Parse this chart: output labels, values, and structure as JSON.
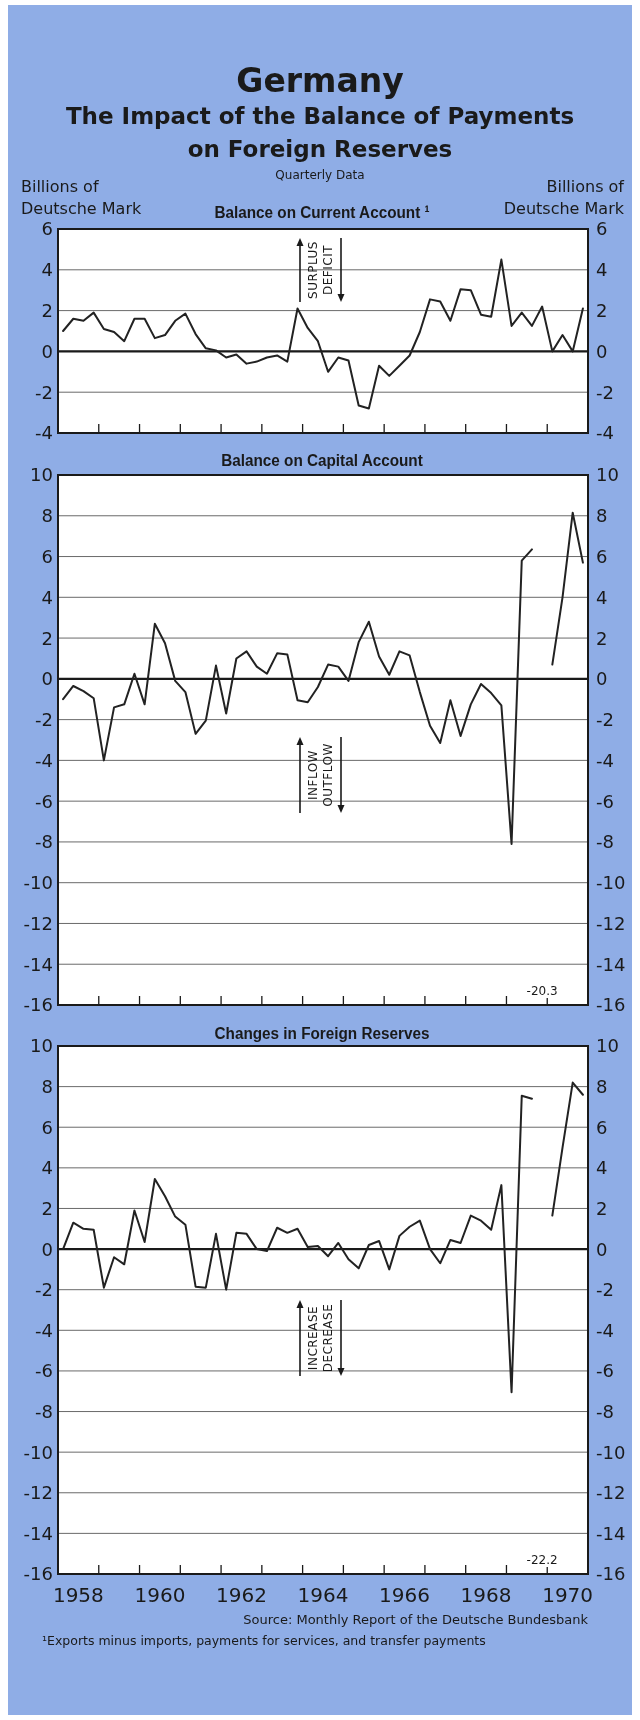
{
  "chart_data": [
    {
      "type": "other",
      "title": "Germany",
      "subtitle": "The Impact of the Balance of Payments on Foreign Reserves",
      "annotations": [
        "Quarterly Data"
      ]
    },
    {
      "type": "line",
      "title": "Balance on Current Account ¹",
      "ylabel": "Billions of Deutsche Mark",
      "y2label": "Billions of Deutsche Mark",
      "x": [
        1958.125,
        1958.375,
        1958.625,
        1958.875,
        1959.125,
        1959.375,
        1959.625,
        1959.875,
        1960.125,
        1960.375,
        1960.625,
        1960.875,
        1961.125,
        1961.375,
        1961.625,
        1961.875,
        1962.125,
        1962.375,
        1962.625,
        1962.875,
        1963.125,
        1963.375,
        1963.625,
        1963.875,
        1964.125,
        1964.375,
        1964.625,
        1964.875,
        1965.125,
        1965.375,
        1965.625,
        1965.875,
        1966.125,
        1966.375,
        1966.625,
        1966.875,
        1967.125,
        1967.375,
        1967.625,
        1967.875,
        1968.125,
        1968.375,
        1968.625,
        1968.875,
        1969.125,
        1969.375,
        1969.625,
        1969.875,
        1970.125,
        1970.375,
        1970.625,
        1970.875
      ],
      "xlim": [
        1958,
        1971
      ],
      "xticks": [
        {
          "value": 1959,
          "label": null
        },
        {
          "value": 1960,
          "label": null
        },
        {
          "value": 1961,
          "label": null
        },
        {
          "value": 1962,
          "label": null
        },
        {
          "value": 1963,
          "label": null
        },
        {
          "value": 1964,
          "label": null
        },
        {
          "value": 1965,
          "label": null
        },
        {
          "value": 1966,
          "label": null
        },
        {
          "value": 1967,
          "label": null
        },
        {
          "value": 1968,
          "label": null
        },
        {
          "value": 1969,
          "label": null
        },
        {
          "value": 1970,
          "label": null
        }
      ],
      "ylim": [
        -4,
        6
      ],
      "yticks": [
        -4,
        -2,
        0,
        2,
        4,
        6
      ],
      "y2lim": [
        -4,
        6
      ],
      "y2ticks": [
        -4,
        -2,
        0,
        2,
        4,
        6
      ],
      "grid": "y",
      "tick_labels": "y",
      "marker": "none",
      "line_style": "solid",
      "ref_lines": [
        {
          "axis": "y",
          "value": 0
        }
      ],
      "annotations": [
        "SURPLUS",
        "DEFICIT"
      ],
      "series": [
        {
          "color": "#222222",
          "values": [
            1.0,
            1.6,
            1.5,
            1.9,
            1.1,
            0.95,
            0.5,
            1.6,
            1.6,
            0.65,
            0.8,
            1.5,
            1.85,
            0.85,
            0.15,
            0.05,
            -0.3,
            -0.15,
            -0.6,
            -0.5,
            -0.3,
            -0.2,
            -0.5,
            2.1,
            1.15,
            0.5,
            -1.0,
            -0.3,
            -0.45,
            -2.65,
            -2.8,
            -0.7,
            -1.2,
            -0.7,
            -0.2,
            0.95,
            2.55,
            2.45,
            1.5,
            3.05,
            3.0,
            1.8,
            1.7,
            4.5,
            1.25,
            1.9,
            1.25,
            2.2,
            0.0,
            0.8,
            0.0,
            2.1
          ]
        }
      ]
    },
    {
      "type": "line",
      "title": "Balance on Capital Account",
      "x": [
        1958.125,
        1958.375,
        1958.625,
        1958.875,
        1959.125,
        1959.375,
        1959.625,
        1959.875,
        1960.125,
        1960.375,
        1960.625,
        1960.875,
        1961.125,
        1961.375,
        1961.625,
        1961.875,
        1962.125,
        1962.375,
        1962.625,
        1962.875,
        1963.125,
        1963.375,
        1963.625,
        1963.875,
        1964.125,
        1964.375,
        1964.625,
        1964.875,
        1965.125,
        1965.375,
        1965.625,
        1965.875,
        1966.125,
        1966.375,
        1966.625,
        1966.875,
        1967.125,
        1967.375,
        1967.625,
        1967.875,
        1968.125,
        1968.375,
        1968.625,
        1968.875,
        1969.125,
        1969.375,
        1969.625,
        1969.875,
        1970.125,
        1970.375,
        1970.625,
        1970.875
      ],
      "xlim": [
        1958,
        1971
      ],
      "xticks": [
        {
          "value": 1959,
          "label": null
        },
        {
          "value": 1960,
          "label": null
        },
        {
          "value": 1961,
          "label": null
        },
        {
          "value": 1962,
          "label": null
        },
        {
          "value": 1963,
          "label": null
        },
        {
          "value": 1964,
          "label": null
        },
        {
          "value": 1965,
          "label": null
        },
        {
          "value": 1966,
          "label": null
        },
        {
          "value": 1967,
          "label": null
        },
        {
          "value": 1968,
          "label": null
        },
        {
          "value": 1969,
          "label": null
        },
        {
          "value": 1970,
          "label": null
        }
      ],
      "ylim": [
        -16,
        10
      ],
      "yticks": [
        -16,
        -14,
        -12,
        -10,
        -8,
        -6,
        -4,
        -2,
        0,
        2,
        4,
        6,
        8,
        10
      ],
      "y2lim": [
        -16,
        10
      ],
      "y2ticks": [
        -16,
        -14,
        -12,
        -10,
        -8,
        -6,
        -4,
        -2,
        0,
        2,
        4,
        6,
        8,
        10
      ],
      "grid": "y",
      "tick_labels": "y",
      "marker": "none",
      "line_style": "solid",
      "ref_lines": [
        {
          "axis": "y",
          "value": 0
        }
      ],
      "annotations": [
        "INFLOW",
        "OUTFLOW",
        {
          "text": "-20.3",
          "x": 1969.875
        }
      ],
      "series": [
        {
          "color": "#222222",
          "values": [
            -1.0,
            -0.35,
            -0.6,
            -0.95,
            -4.0,
            -1.4,
            -1.25,
            0.25,
            -1.25,
            2.7,
            1.75,
            -0.1,
            -0.65,
            -2.7,
            -2.05,
            0.65,
            -1.7,
            1.0,
            1.35,
            0.6,
            0.25,
            1.25,
            1.2,
            -1.05,
            -1.15,
            -0.4,
            0.7,
            0.6,
            -0.1,
            1.8,
            2.8,
            1.1,
            0.2,
            1.35,
            1.15,
            -0.65,
            -2.3,
            -3.15,
            -1.05,
            -2.8,
            -1.25,
            -0.25,
            -0.7,
            -1.3,
            -8.1,
            5.8,
            6.35,
            null,
            0.7,
            4.0,
            8.15,
            5.7
          ]
        }
      ]
    },
    {
      "type": "line",
      "title": "Changes in Foreign Reserves",
      "x": [
        1958.125,
        1958.375,
        1958.625,
        1958.875,
        1959.125,
        1959.375,
        1959.625,
        1959.875,
        1960.125,
        1960.375,
        1960.625,
        1960.875,
        1961.125,
        1961.375,
        1961.625,
        1961.875,
        1962.125,
        1962.375,
        1962.625,
        1962.875,
        1963.125,
        1963.375,
        1963.625,
        1963.875,
        1964.125,
        1964.375,
        1964.625,
        1964.875,
        1965.125,
        1965.375,
        1965.625,
        1965.875,
        1966.125,
        1966.375,
        1966.625,
        1966.875,
        1967.125,
        1967.375,
        1967.625,
        1967.875,
        1968.125,
        1968.375,
        1968.625,
        1968.875,
        1969.125,
        1969.375,
        1969.625,
        1969.875,
        1970.125,
        1970.375,
        1970.625,
        1970.875
      ],
      "xlim": [
        1958,
        1971
      ],
      "xticks": [
        {
          "value": 1959,
          "label": null
        },
        {
          "value": 1960,
          "label": null
        },
        {
          "value": 1961,
          "label": null
        },
        {
          "value": 1962,
          "label": null
        },
        {
          "value": 1963,
          "label": null
        },
        {
          "value": 1964,
          "label": null
        },
        {
          "value": 1965,
          "label": null
        },
        {
          "value": 1966,
          "label": null
        },
        {
          "value": 1967,
          "label": null
        },
        {
          "value": 1968,
          "label": null
        },
        {
          "value": 1969,
          "label": null
        },
        {
          "value": 1970,
          "label": null
        },
        {
          "value": 1958.5,
          "label": "1958"
        },
        {
          "value": 1960.5,
          "label": "1960"
        },
        {
          "value": 1962.5,
          "label": "1962"
        },
        {
          "value": 1964.5,
          "label": "1964"
        },
        {
          "value": 1966.5,
          "label": "1966"
        },
        {
          "value": 1968.5,
          "label": "1968"
        },
        {
          "value": 1970.5,
          "label": "1970"
        }
      ],
      "ylim": [
        -16,
        10
      ],
      "yticks": [
        -16,
        -14,
        -12,
        -10,
        -8,
        -6,
        -4,
        -2,
        0,
        2,
        4,
        6,
        8,
        10
      ],
      "y2lim": [
        -16,
        10
      ],
      "y2ticks": [
        -16,
        -14,
        -12,
        -10,
        -8,
        -6,
        -4,
        -2,
        0,
        2,
        4,
        6,
        8,
        10
      ],
      "grid": "y",
      "marker": "none",
      "line_style": "solid",
      "ref_lines": [
        {
          "axis": "y",
          "value": 0
        }
      ],
      "annotations": [
        "INCREASE",
        "DECREASE",
        {
          "text": "-22.2",
          "x": 1969.875
        },
        "Source: Monthly Report of the Deutsche Bundesbank",
        "¹Exports minus imports, payments for services, and transfer payments"
      ],
      "series": [
        {
          "color": "#222222",
          "values": [
            0.0,
            1.3,
            1.0,
            0.95,
            -1.9,
            -0.4,
            -0.75,
            1.9,
            0.35,
            3.45,
            2.6,
            1.6,
            1.2,
            -1.85,
            -1.9,
            0.75,
            -2.0,
            0.8,
            0.75,
            0.0,
            -0.1,
            1.05,
            0.8,
            1.0,
            0.1,
            0.15,
            -0.35,
            0.3,
            -0.5,
            -0.95,
            0.2,
            0.4,
            -1.0,
            0.65,
            1.1,
            1.4,
            0.0,
            -0.7,
            0.45,
            0.3,
            1.65,
            1.4,
            0.95,
            3.15,
            -7.05,
            7.55,
            7.4,
            null,
            1.65,
            5.0,
            8.2,
            7.6
          ]
        }
      ]
    }
  ]
}
